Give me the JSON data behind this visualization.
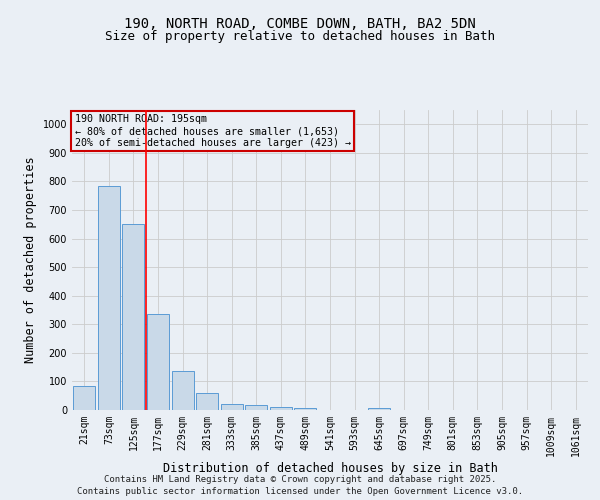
{
  "title": "190, NORTH ROAD, COMBE DOWN, BATH, BA2 5DN",
  "subtitle": "Size of property relative to detached houses in Bath",
  "xlabel": "Distribution of detached houses by size in Bath",
  "ylabel": "Number of detached properties",
  "categories": [
    "21sqm",
    "73sqm",
    "125sqm",
    "177sqm",
    "229sqm",
    "281sqm",
    "333sqm",
    "385sqm",
    "437sqm",
    "489sqm",
    "541sqm",
    "593sqm",
    "645sqm",
    "697sqm",
    "749sqm",
    "801sqm",
    "853sqm",
    "905sqm",
    "957sqm",
    "1009sqm",
    "1061sqm"
  ],
  "values": [
    85,
    785,
    650,
    335,
    135,
    60,
    22,
    18,
    9,
    6,
    0,
    0,
    8,
    0,
    0,
    0,
    0,
    0,
    0,
    0,
    0
  ],
  "bar_color": "#c9d9e8",
  "bar_edge_color": "#5b9bd5",
  "grid_color": "#cccccc",
  "bg_color": "#eaeff5",
  "red_line_x": 2.5,
  "annotation_text": "190 NORTH ROAD: 195sqm\n← 80% of detached houses are smaller (1,653)\n20% of semi-detached houses are larger (423) →",
  "annotation_box_color": "#cc0000",
  "ylim": [
    0,
    1050
  ],
  "yticks": [
    0,
    100,
    200,
    300,
    400,
    500,
    600,
    700,
    800,
    900,
    1000
  ],
  "footer": "Contains HM Land Registry data © Crown copyright and database right 2025.\nContains public sector information licensed under the Open Government Licence v3.0.",
  "title_fontsize": 10,
  "subtitle_fontsize": 9,
  "axis_label_fontsize": 8.5,
  "tick_fontsize": 7,
  "footer_fontsize": 6.5
}
